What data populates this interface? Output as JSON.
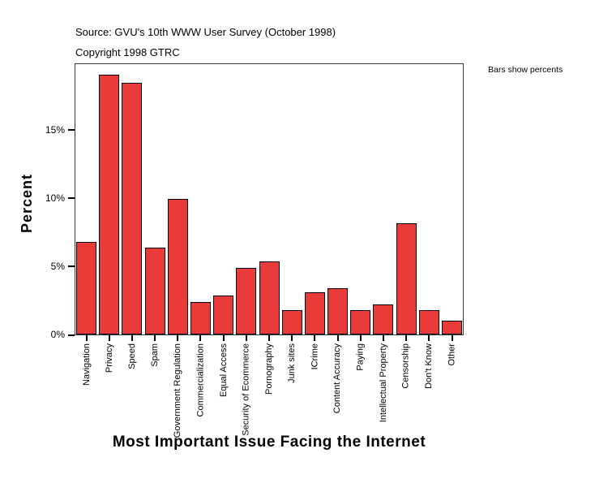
{
  "header": {
    "source_line": "Source: GVU's 10th WWW User Survey (October 1998)",
    "copyright_line": "Copyright 1998 GTRC"
  },
  "chart_data": {
    "type": "bar",
    "title": "Most Important Issue Facing the Internet",
    "xlabel": "Most Important Issue Facing the Internet",
    "ylabel": "Percent",
    "note": "Bars show percents",
    "categories": [
      "Navigation",
      "Privacy",
      "Speed",
      "Spam",
      "Government Regulation",
      "Commercialization",
      "Equal Access",
      "Security of Ecommerce",
      "Pornography",
      "Junk sites",
      "ICrime",
      "Content Accuracy",
      "Paying",
      "Intellectual Property",
      "Censorship",
      "Don't Know",
      "Other"
    ],
    "values": [
      6.8,
      19.1,
      18.5,
      6.4,
      10.0,
      2.4,
      2.9,
      4.9,
      5.4,
      1.8,
      3.1,
      3.4,
      1.8,
      2.2,
      8.2,
      1.8,
      1.0
    ],
    "unit": "%",
    "ylim": [
      0,
      19.9
    ],
    "yticks": [
      0,
      5,
      10,
      15
    ],
    "ytick_labels": [
      "0%",
      "5%",
      "10%",
      "15%"
    ],
    "grid": false,
    "legend_position": "none",
    "bar_fill": "#ea3b3b",
    "bar_border": "#000000"
  }
}
